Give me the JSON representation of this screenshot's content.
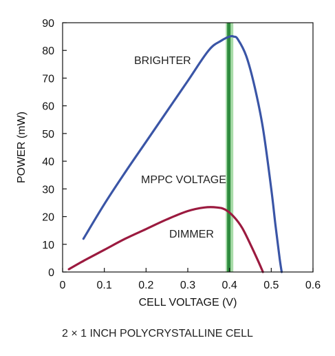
{
  "chart_data": {
    "type": "line",
    "title": "",
    "xlabel": "CELL VOLTAGE (V)",
    "ylabel": "POWER (mW)",
    "xlim": [
      0,
      0.6
    ],
    "ylim": [
      0,
      90
    ],
    "x_ticks": [
      0,
      0.1,
      0.2,
      0.3,
      0.4,
      0.5,
      0.6
    ],
    "y_ticks": [
      0,
      10,
      20,
      30,
      40,
      50,
      60,
      70,
      80,
      90
    ],
    "x_tick_labels": [
      "0",
      "0.1",
      "0.2",
      "0.3",
      "0.4",
      "0.5",
      "0.6"
    ],
    "y_tick_labels": [
      "0",
      "10",
      "20",
      "30",
      "40",
      "50",
      "60",
      "70",
      "80",
      "90"
    ],
    "grid": false,
    "series": [
      {
        "name": "BRIGHTER",
        "color": "#3a55a6",
        "x": [
          0.05,
          0.1,
          0.15,
          0.2,
          0.25,
          0.3,
          0.35,
          0.38,
          0.4,
          0.41,
          0.42,
          0.44,
          0.46,
          0.48,
          0.5,
          0.51,
          0.52,
          0.525
        ],
        "y": [
          12,
          24.5,
          36,
          47,
          58,
          69,
          80,
          83.5,
          85,
          85,
          84,
          78,
          67,
          52,
          30,
          17,
          5,
          0
        ]
      },
      {
        "name": "DIMMER",
        "color": "#9b1a3f",
        "x": [
          0.015,
          0.05,
          0.1,
          0.15,
          0.2,
          0.25,
          0.3,
          0.34,
          0.37,
          0.39,
          0.41,
          0.43,
          0.45,
          0.47,
          0.48
        ],
        "y": [
          1,
          4,
          8,
          12,
          15.5,
          19,
          22,
          23.3,
          23.3,
          22.5,
          20,
          16,
          10,
          3.5,
          0
        ]
      }
    ],
    "reference_lines": [
      {
        "label": "MPPC VOLTAGE",
        "x": 0.4,
        "color": "#2e8b3e",
        "halo": "#a8dca8"
      }
    ],
    "annotations": [
      "BRIGHTER",
      "MPPC VOLTAGE",
      "DIMMER"
    ]
  },
  "caption": "2 × 1 INCH POLYCRYSTALLINE CELL"
}
